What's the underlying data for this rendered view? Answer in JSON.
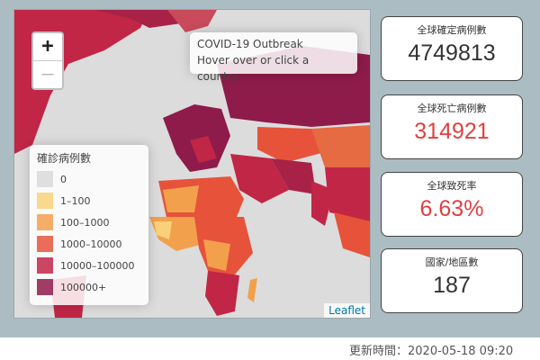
{
  "map": {
    "zoom_in": "+",
    "zoom_out": "—",
    "info_title": "COVID-19 Outbreak",
    "info_hint": "Hover over or click a country",
    "attribution": "Leaflet",
    "legend": {
      "title": "確診病例數",
      "items": [
        {
          "label": "0",
          "color": "#d9d9d9"
        },
        {
          "label": "1–100",
          "color": "#f9d17a"
        },
        {
          "label": "100–1000",
          "color": "#f3a04d"
        },
        {
          "label": "1000–10000",
          "color": "#e6533a"
        },
        {
          "label": "10000–100000",
          "color": "#c12646"
        },
        {
          "label": "100000+",
          "color": "#8e1b4a"
        }
      ]
    }
  },
  "cards": [
    {
      "label": "全球確定病例數",
      "value": "4749813"
    },
    {
      "label": "全球死亡病例數",
      "value": "314921"
    },
    {
      "label": "全球致死率",
      "value": "6.63%"
    },
    {
      "label": "國家/地區數",
      "value": "187"
    }
  ],
  "footer": {
    "updated": "更新時間：2020-05-18 09:20"
  }
}
